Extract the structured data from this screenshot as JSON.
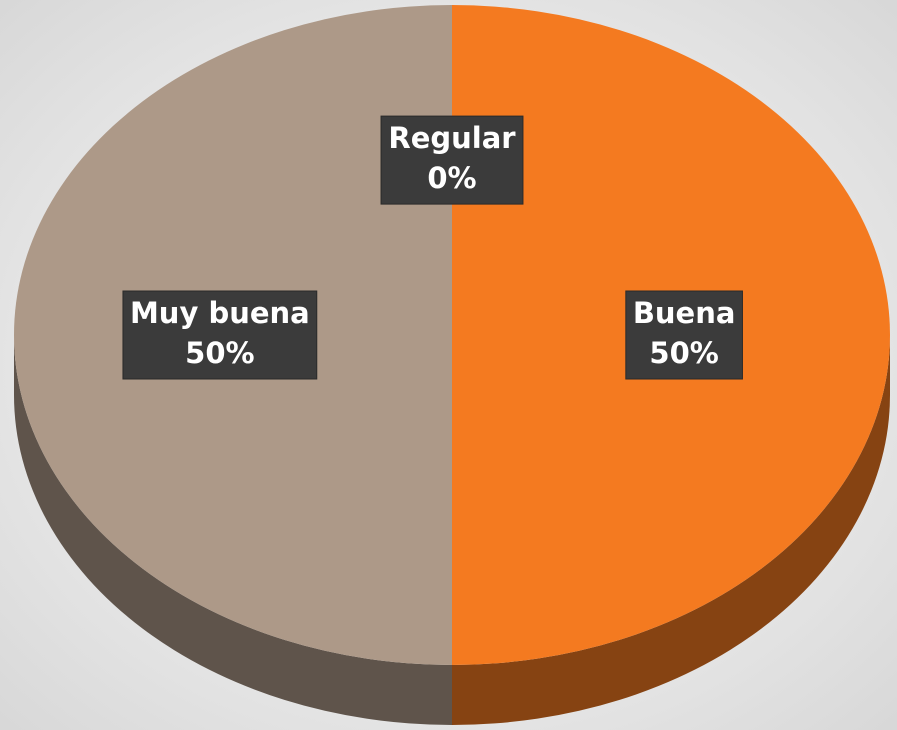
{
  "chart_data": {
    "type": "pie3d",
    "categories": [
      "Regular",
      "Buena",
      "Muy buena"
    ],
    "values": [
      0,
      50,
      50
    ],
    "value_labels": [
      "0%",
      "50%",
      "50%"
    ],
    "colors": [
      "#b5a89c",
      "#f47a20",
      "#ad9988"
    ]
  }
}
